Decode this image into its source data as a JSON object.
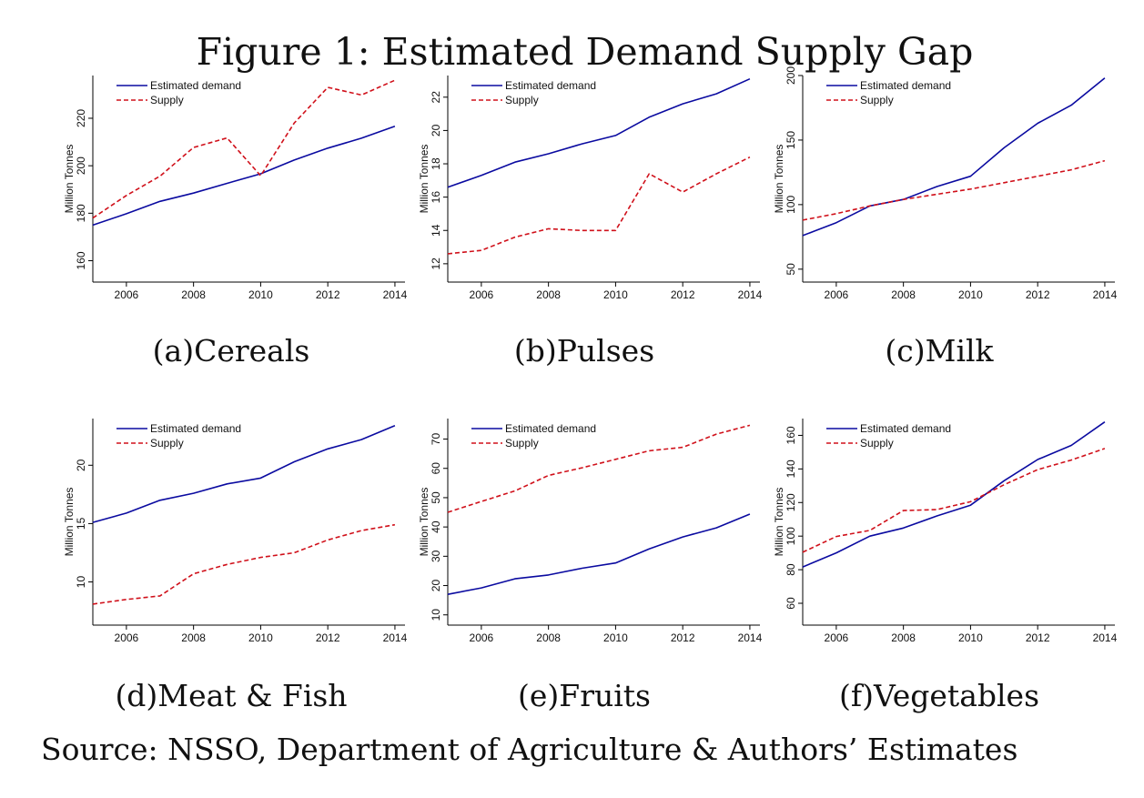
{
  "figure": {
    "title": "Figure 1: Estimated Demand Supply Gap",
    "source": "Source: NSSO, Department of Agriculture & Authors’ Estimates"
  },
  "colors": {
    "demand": "#0a0aa0",
    "supply": "#d0101a",
    "axis": "#000000"
  },
  "chart_data": [
    {
      "type": "line",
      "caption": "(a)Cereals",
      "ylabel": "Million Tonnes",
      "x": [
        2005,
        2006,
        2007,
        2008,
        2009,
        2010,
        2011,
        2012,
        2013,
        2014
      ],
      "xticks": [
        2006,
        2008,
        2010,
        2012,
        2014
      ],
      "yticks": [
        160,
        180,
        200,
        220
      ],
      "xlim": [
        2005,
        2014.3
      ],
      "ylim": [
        151,
        238
      ],
      "legend": "top-left",
      "series": [
        {
          "name": "Estimated demand",
          "style": "solid",
          "values": [
            175,
            179.8,
            185,
            188.5,
            192.6,
            196.6,
            202.4,
            207.4,
            211.6,
            216.6
          ]
        },
        {
          "name": "Supply",
          "style": "dashed",
          "values": [
            178,
            187.5,
            195.6,
            207.7,
            211.7,
            195.8,
            218,
            233,
            229.8,
            236
          ]
        }
      ]
    },
    {
      "type": "line",
      "caption": "(b)Pulses",
      "ylabel": "Million Tonnes",
      "x": [
        2005,
        2006,
        2007,
        2008,
        2009,
        2010,
        2011,
        2012,
        2013,
        2014
      ],
      "xticks": [
        2006,
        2008,
        2010,
        2012,
        2014
      ],
      "yticks": [
        12,
        14,
        16,
        18,
        20,
        22
      ],
      "xlim": [
        2005,
        2014.3
      ],
      "ylim": [
        10.9,
        23.3
      ],
      "legend": "top-left",
      "series": [
        {
          "name": "Estimated demand",
          "style": "solid",
          "values": [
            16.6,
            17.3,
            18.1,
            18.6,
            19.2,
            19.7,
            20.8,
            21.6,
            22.2,
            23.1
          ]
        },
        {
          "name": "Supply",
          "style": "dashed",
          "values": [
            12.6,
            12.8,
            13.6,
            14.1,
            14,
            14,
            17.4,
            16.3,
            17.4,
            18.4
          ]
        }
      ]
    },
    {
      "type": "line",
      "caption": "(c)Milk",
      "ylabel": "Million Tonnes",
      "x": [
        2005,
        2006,
        2007,
        2008,
        2009,
        2010,
        2011,
        2012,
        2013,
        2014
      ],
      "xticks": [
        2006,
        2008,
        2010,
        2012,
        2014
      ],
      "yticks": [
        50,
        100,
        150,
        200
      ],
      "xlim": [
        2005,
        2014.3
      ],
      "ylim": [
        40,
        200
      ],
      "legend": "top-left",
      "series": [
        {
          "name": "Estimated demand",
          "style": "solid",
          "values": [
            76,
            86,
            99,
            104,
            114,
            122,
            144,
            163,
            177,
            198
          ]
        },
        {
          "name": "Supply",
          "style": "dashed",
          "values": [
            88,
            93,
            99,
            104,
            108,
            112,
            117,
            122,
            127,
            134
          ]
        }
      ]
    },
    {
      "type": "line",
      "caption": "(d)Meat & Fish",
      "ylabel": "Million Tonnes",
      "x": [
        2005,
        2006,
        2007,
        2008,
        2009,
        2010,
        2011,
        2012,
        2013,
        2014
      ],
      "xticks": [
        2006,
        2008,
        2010,
        2012,
        2014
      ],
      "yticks": [
        10,
        15,
        20
      ],
      "xlim": [
        2005,
        2014.3
      ],
      "ylim": [
        6.3,
        24
      ],
      "legend": "top-left",
      "series": [
        {
          "name": "Estimated demand",
          "style": "solid",
          "values": [
            15.1,
            15.9,
            17,
            17.6,
            18.4,
            18.9,
            20.3,
            21.4,
            22.2,
            23.4
          ]
        },
        {
          "name": "Supply",
          "style": "dashed",
          "values": [
            8.1,
            8.5,
            8.8,
            10.7,
            11.5,
            12.1,
            12.5,
            13.6,
            14.4,
            14.9
          ]
        }
      ]
    },
    {
      "type": "line",
      "caption": "(e)Fruits",
      "ylabel": "Million Tonnes",
      "x": [
        2005,
        2006,
        2007,
        2008,
        2009,
        2010,
        2011,
        2012,
        2013,
        2014
      ],
      "xticks": [
        2006,
        2008,
        2010,
        2012,
        2014
      ],
      "yticks": [
        10,
        20,
        30,
        40,
        50,
        60,
        70
      ],
      "xlim": [
        2005,
        2014.3
      ],
      "ylim": [
        6.5,
        77
      ],
      "legend": "top-left",
      "series": [
        {
          "name": "Estimated demand",
          "style": "solid",
          "values": [
            17,
            19.2,
            22.3,
            23.6,
            25.9,
            27.7,
            32.5,
            36.6,
            39.7,
            44.4
          ]
        },
        {
          "name": "Supply",
          "style": "dashed",
          "values": [
            45,
            48.7,
            52.3,
            57.6,
            60.2,
            63.1,
            66,
            67.2,
            71.7,
            74.7
          ]
        }
      ]
    },
    {
      "type": "line",
      "caption": "(f)Vegetables",
      "ylabel": "Million Tonnes",
      "x": [
        2005,
        2006,
        2007,
        2008,
        2009,
        2010,
        2011,
        2012,
        2013,
        2014
      ],
      "xticks": [
        2006,
        2008,
        2010,
        2012,
        2014
      ],
      "yticks": [
        60,
        80,
        100,
        120,
        140,
        160
      ],
      "xlim": [
        2005,
        2014.3
      ],
      "ylim": [
        47,
        170
      ],
      "legend": "top-left",
      "series": [
        {
          "name": "Estimated demand",
          "style": "solid",
          "values": [
            81.6,
            90,
            100,
            104.8,
            112,
            118.4,
            133,
            145.6,
            154,
            168
          ]
        },
        {
          "name": "Supply",
          "style": "dashed",
          "values": [
            90.4,
            99.8,
            103.4,
            115.2,
            115.8,
            120.5,
            130.6,
            139.6,
            145.3,
            152.2
          ]
        }
      ]
    }
  ]
}
